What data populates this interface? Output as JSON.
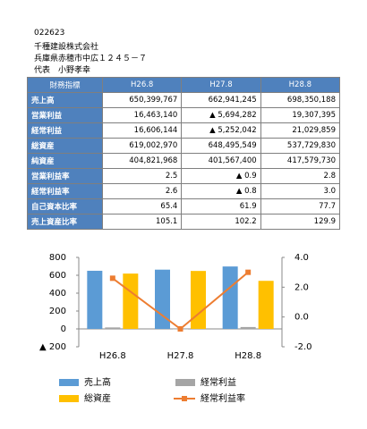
{
  "header": {
    "code": "022623",
    "company": "千種建設株式会社",
    "address": "兵庫県赤穂市中広１２４５－７",
    "representative": "代表　小野孝幸"
  },
  "table": {
    "columns": [
      "財務指標",
      "H26.8",
      "H27.8",
      "H28.8"
    ],
    "rows": [
      [
        "売上高",
        "650,399,767",
        "662,941,245",
        "698,350,188"
      ],
      [
        "営業利益",
        "16,463,140",
        "▲ 5,694,282",
        "19,307,395"
      ],
      [
        "経常利益",
        "16,606,144",
        "▲ 5,252,042",
        "21,029,859"
      ],
      [
        "総資産",
        "619,002,970",
        "648,495,549",
        "537,729,830"
      ],
      [
        "純資産",
        "404,821,968",
        "401,567,400",
        "417,579,730"
      ],
      [
        "営業利益率",
        "2.5",
        "▲ 0.9",
        "2.8"
      ],
      [
        "経常利益率",
        "2.6",
        "▲ 0.8",
        "3.0"
      ],
      [
        "自己資本比率",
        "65.4",
        "61.9",
        "77.7"
      ],
      [
        "売上資産比率",
        "105.1",
        "102.2",
        "129.9"
      ]
    ]
  },
  "chart_data": {
    "type": "combo",
    "categories": [
      "H26.8",
      "H27.8",
      "H28.8"
    ],
    "series": [
      {
        "name": "売上高",
        "color": "#5b9bd5",
        "kind": "bar",
        "values": [
          650.4,
          662.9,
          698.4
        ]
      },
      {
        "name": "経常利益",
        "color": "#a5a5a5",
        "kind": "bar",
        "values": [
          16.6,
          -5.3,
          21.0
        ]
      },
      {
        "name": "総資産",
        "color": "#ffc000",
        "kind": "bar",
        "values": [
          619.0,
          648.5,
          537.7
        ]
      },
      {
        "name": "経常利益率",
        "color": "#ed7d31",
        "kind": "line",
        "axis": "y2",
        "values": [
          2.6,
          -0.8,
          3.0
        ]
      }
    ],
    "ylim": [
      -200,
      800
    ],
    "yticks": [
      {
        "value": -200,
        "label": "▲ 200"
      },
      0,
      200,
      400,
      600,
      800
    ],
    "y2lim": [
      -2,
      4
    ],
    "y2ticks": [
      {
        "value": -2,
        "label": "-2.0"
      },
      {
        "value": 0,
        "label": "0.0"
      },
      {
        "value": 2,
        "label": "2.0"
      },
      {
        "value": 4,
        "label": "4.0"
      }
    ]
  }
}
